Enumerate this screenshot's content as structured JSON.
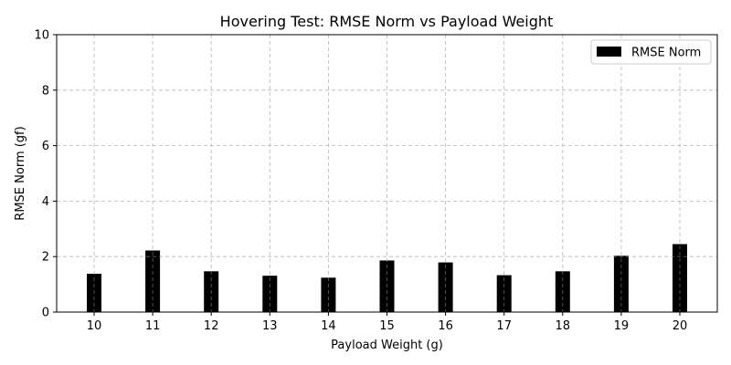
{
  "chart_data": {
    "type": "bar",
    "title": "Hovering Test: RMSE Norm vs Payload Weight",
    "xlabel": "Payload Weight (g)",
    "ylabel": "RMSE Norm (gf)",
    "categories": [
      "10",
      "11",
      "12",
      "13",
      "14",
      "15",
      "16",
      "17",
      "18",
      "19",
      "20"
    ],
    "series": [
      {
        "name": "RMSE Norm",
        "color": "#000000",
        "values": [
          1.38,
          2.22,
          1.47,
          1.31,
          1.24,
          1.86,
          1.79,
          1.33,
          1.47,
          2.03,
          2.45
        ]
      }
    ],
    "ylim": [
      0,
      10
    ],
    "yticks": [
      0,
      2,
      4,
      6,
      8,
      10
    ],
    "grid": true,
    "grid_style": "dashed",
    "legend_position": "top-right"
  }
}
